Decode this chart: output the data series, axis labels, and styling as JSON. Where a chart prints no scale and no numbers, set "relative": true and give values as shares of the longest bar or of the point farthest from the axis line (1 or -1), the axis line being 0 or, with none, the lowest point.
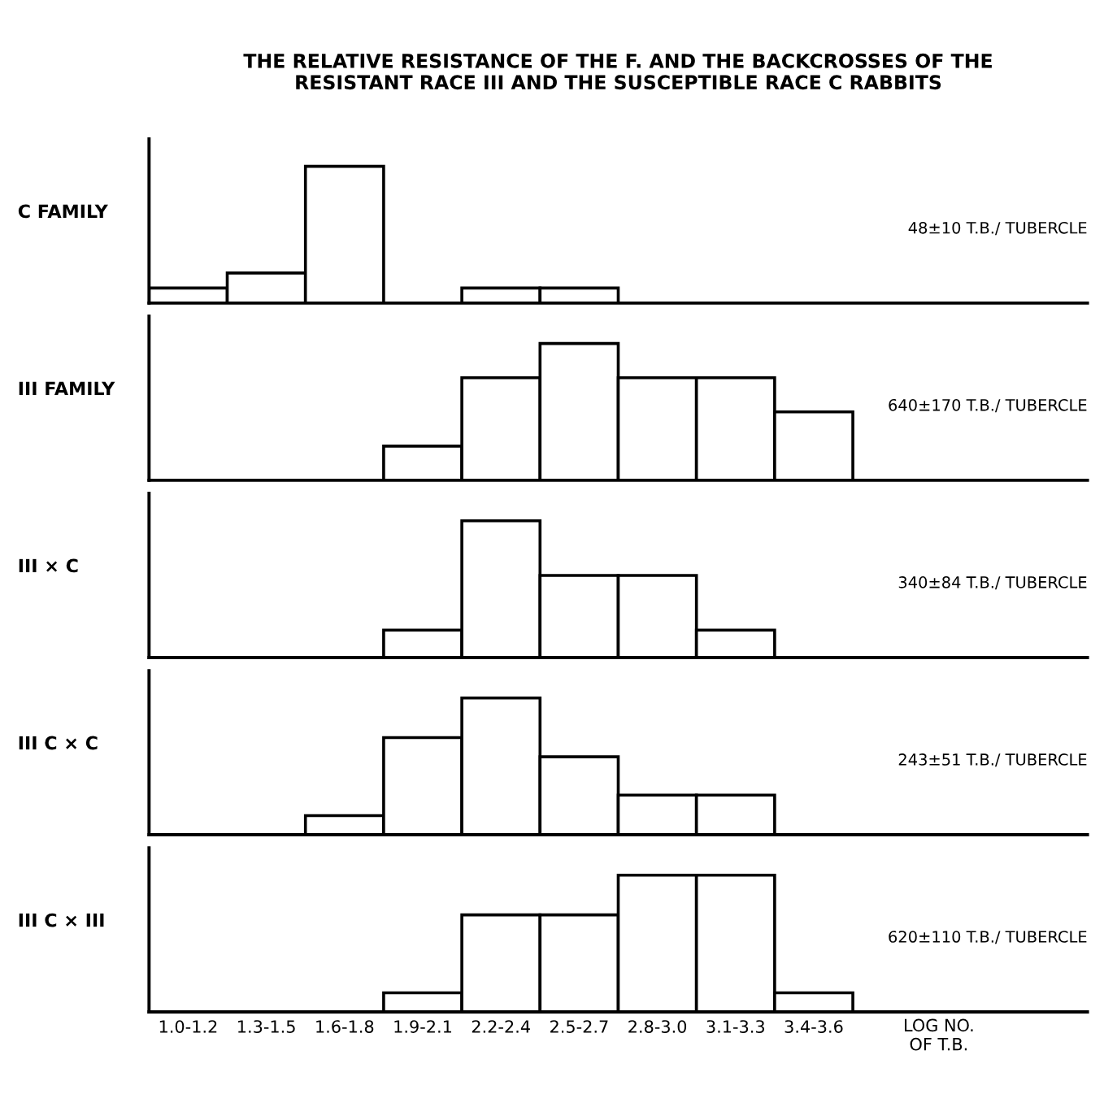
{
  "chart_data": [
    {
      "type": "bar",
      "title": "THE RELATIVE RESISTANCE OF THE F. AND THE BACKCROSSES OF THE\nRESISTANT RACE III AND THE SUSCEPTIBLE RACE C RABBITS",
      "ylabel": "C FAMILY",
      "relative": true,
      "tick_labels": false,
      "color": "#ffffff",
      "categories": [
        "1.0-1.2",
        "1.3-1.5",
        "1.6-1.8",
        "1.9-2.1",
        "2.2-2.4",
        "2.5-2.7",
        "2.8-3.0",
        "3.1-3.3",
        "3.4-3.6"
      ],
      "values": [
        0.11,
        0.22,
        1,
        null,
        0.11,
        0.11,
        null,
        null,
        null
      ],
      "annotations": [
        "48±10 T.B./ TUBERCLE"
      ]
    },
    {
      "type": "bar",
      "ylabel": "III FAMILY",
      "relative": true,
      "tick_labels": false,
      "color": "#ffffff",
      "categories": [
        "1.0-1.2",
        "1.3-1.5",
        "1.6-1.8",
        "1.9-2.1",
        "2.2-2.4",
        "2.5-2.7",
        "2.8-3.0",
        "3.1-3.3",
        "3.4-3.6"
      ],
      "values": [
        null,
        null,
        null,
        0.25,
        0.75,
        1,
        0.75,
        0.75,
        0.5
      ],
      "annotations": [
        "640±170 T.B./ TUBERCLE"
      ]
    },
    {
      "type": "bar",
      "ylabel": "III × C",
      "relative": true,
      "tick_labels": false,
      "color": "#ffffff",
      "categories": [
        "1.0-1.2",
        "1.3-1.5",
        "1.6-1.8",
        "1.9-2.1",
        "2.2-2.4",
        "2.5-2.7",
        "2.8-3.0",
        "3.1-3.3",
        "3.4-3.6"
      ],
      "values": [
        null,
        null,
        null,
        0.2,
        1,
        0.6,
        0.6,
        0.2,
        null
      ],
      "annotations": [
        "340±84 T.B./ TUBERCLE"
      ]
    },
    {
      "type": "bar",
      "ylabel": "III C × C",
      "relative": true,
      "tick_labels": false,
      "color": "#ffffff",
      "categories": [
        "1.0-1.2",
        "1.3-1.5",
        "1.6-1.8",
        "1.9-2.1",
        "2.2-2.4",
        "2.5-2.7",
        "2.8-3.0",
        "3.1-3.3",
        "3.4-3.6"
      ],
      "values": [
        null,
        null,
        0.14,
        0.71,
        1,
        0.57,
        0.29,
        0.29,
        null
      ],
      "annotations": [
        "243±51 T.B./ TUBERCLE"
      ]
    },
    {
      "type": "bar",
      "ylabel": "III C × III",
      "xlabel": "LOG NO.\nOF T.B.",
      "relative": true,
      "tick_labels": "x",
      "color": "#ffffff",
      "categories": [
        "1.0-1.2",
        "1.3-1.5",
        "1.6-1.8",
        "1.9-2.1",
        "2.2-2.4",
        "2.5-2.7",
        "2.8-3.0",
        "3.1-3.3",
        "3.4-3.6"
      ],
      "values": [
        null,
        null,
        null,
        0.14,
        0.71,
        0.71,
        1,
        1,
        0.14
      ],
      "annotations": [
        "620±110 T.B./ TUBERCLE"
      ]
    }
  ]
}
